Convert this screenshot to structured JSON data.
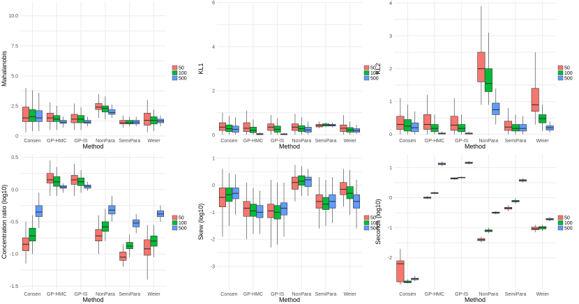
{
  "colors": {
    "n50": "#F8766D",
    "n100": "#00BA38",
    "n500": "#619CFF"
  },
  "chart_data": [
    {
      "type": "boxplot",
      "ylabel": "Mahalanobis",
      "xlabel": "Method",
      "ylim": [
        0,
        11.2
      ],
      "yticks": [
        0,
        2.5,
        5,
        7.5,
        10
      ],
      "yticklabels": [
        "0",
        "2.5",
        "5.0",
        "7.5",
        "10.0"
      ],
      "categories": [
        "Consen",
        "GP-HMC",
        "GP-IS",
        "NonPara",
        "SemiPara",
        "Weier"
      ],
      "legend": [
        "50",
        "100",
        "500"
      ],
      "boxes": [
        [
          [
            0.3,
            1.2,
            1.5,
            2.4,
            4.0
          ],
          [
            0.4,
            1.2,
            1.6,
            2.2,
            3.8
          ],
          [
            0.4,
            1.2,
            1.5,
            2.1,
            3.6
          ]
        ],
        [
          [
            0.5,
            1.2,
            1.5,
            1.9,
            2.8
          ],
          [
            0.5,
            1.2,
            1.4,
            1.7,
            2.5
          ],
          [
            0.7,
            1.05,
            1.15,
            1.3,
            1.6
          ]
        ],
        [
          [
            0.5,
            1.1,
            1.4,
            1.8,
            2.7
          ],
          [
            0.5,
            1.1,
            1.4,
            1.7,
            2.4
          ],
          [
            0.8,
            1.05,
            1.15,
            1.3,
            1.6
          ]
        ],
        [
          [
            1.5,
            2.2,
            2.4,
            2.7,
            3.5
          ],
          [
            1.4,
            2.0,
            2.3,
            2.5,
            3.3
          ],
          [
            1.5,
            1.8,
            1.95,
            2.2,
            2.6
          ]
        ],
        [
          [
            0.7,
            1.0,
            1.1,
            1.3,
            1.7
          ],
          [
            0.8,
            1.0,
            1.1,
            1.3,
            1.6
          ],
          [
            0.8,
            1.0,
            1.15,
            1.3,
            1.6
          ]
        ],
        [
          [
            0.3,
            0.9,
            1.3,
            1.9,
            3.0
          ],
          [
            0.4,
            1.0,
            1.3,
            1.6,
            2.2
          ],
          [
            0.8,
            1.1,
            1.25,
            1.4,
            1.7
          ]
        ]
      ]
    },
    {
      "type": "boxplot",
      "ylabel": "KL1",
      "xlabel": "Method",
      "ylim": [
        -0.05,
        6.05
      ],
      "yticks": [
        0,
        2,
        4,
        6
      ],
      "yticklabels": [
        "0",
        "2",
        "4",
        "6"
      ],
      "categories": [
        "Consen",
        "GP-HMC",
        "GP-IS",
        "NonPara",
        "SemiPara",
        "Weier"
      ],
      "legend": [
        "50",
        "100",
        "500"
      ],
      "boxes": [
        [
          [
            0.01,
            0.2,
            0.35,
            0.55,
            1.0
          ],
          [
            0.01,
            0.15,
            0.28,
            0.45,
            0.85
          ],
          [
            0.01,
            0.12,
            0.25,
            0.4,
            0.8
          ]
        ],
        [
          [
            0.01,
            0.15,
            0.3,
            0.55,
            1.1
          ],
          [
            0.01,
            0.1,
            0.2,
            0.35,
            0.7
          ],
          [
            0.0,
            0.01,
            0.03,
            0.06,
            0.12
          ]
        ],
        [
          [
            0.01,
            0.2,
            0.35,
            0.5,
            0.9
          ],
          [
            0.01,
            0.12,
            0.25,
            0.4,
            0.75
          ],
          [
            0.0,
            0.01,
            0.03,
            0.05,
            0.1
          ]
        ],
        [
          [
            0.01,
            0.2,
            0.35,
            0.5,
            0.95
          ],
          [
            0.01,
            0.15,
            0.28,
            0.42,
            0.8
          ],
          [
            0.01,
            0.12,
            0.22,
            0.35,
            0.6
          ]
        ],
        [
          [
            0.3,
            0.36,
            0.42,
            0.48,
            0.6
          ],
          [
            0.35,
            0.4,
            0.45,
            0.5,
            0.56
          ],
          [
            0.34,
            0.4,
            0.44,
            0.48,
            0.55
          ]
        ],
        [
          [
            0.01,
            0.15,
            0.3,
            0.45,
            0.9
          ],
          [
            0.01,
            0.12,
            0.22,
            0.33,
            0.6
          ],
          [
            0.05,
            0.12,
            0.2,
            0.28,
            0.45
          ]
        ]
      ]
    },
    {
      "type": "boxplot",
      "ylabel": "KL2",
      "xlabel": "Method",
      "ylim": [
        -0.05,
        4.05
      ],
      "yticks": [
        0,
        1,
        2,
        3,
        4
      ],
      "yticklabels": [
        "0",
        "1",
        "2",
        "3",
        "4"
      ],
      "categories": [
        "Consen",
        "GP-HMC",
        "GP-IS",
        "NonPara",
        "SemiPara",
        "Weier"
      ],
      "legend": [
        "50",
        "100",
        "500"
      ],
      "boxes": [
        [
          [
            0.0,
            0.15,
            0.3,
            0.55,
            1.1
          ],
          [
            0.0,
            0.1,
            0.25,
            0.45,
            0.9
          ],
          [
            0.0,
            0.08,
            0.2,
            0.35,
            0.7
          ]
        ],
        [
          [
            0.0,
            0.15,
            0.3,
            0.6,
            1.2
          ],
          [
            0.0,
            0.08,
            0.18,
            0.3,
            0.6
          ],
          [
            0.0,
            0.01,
            0.02,
            0.04,
            0.08
          ]
        ],
        [
          [
            0.0,
            0.12,
            0.28,
            0.55,
            1.1
          ],
          [
            0.0,
            0.08,
            0.18,
            0.3,
            0.6
          ],
          [
            0.0,
            0.01,
            0.02,
            0.04,
            0.08
          ]
        ],
        [
          [
            0.9,
            1.6,
            2.0,
            2.5,
            3.9
          ],
          [
            0.9,
            1.3,
            1.55,
            2.0,
            3.1
          ],
          [
            0.3,
            0.6,
            0.75,
            0.95,
            1.4
          ]
        ],
        [
          [
            0.0,
            0.12,
            0.22,
            0.4,
            0.8
          ],
          [
            0.0,
            0.1,
            0.18,
            0.3,
            0.6
          ],
          [
            0.0,
            0.1,
            0.18,
            0.3,
            0.55
          ]
        ],
        [
          [
            0.3,
            0.7,
            0.9,
            1.4,
            2.5
          ],
          [
            0.1,
            0.35,
            0.48,
            0.6,
            0.9
          ],
          [
            0.05,
            0.13,
            0.2,
            0.26,
            0.4
          ]
        ]
      ]
    },
    {
      "type": "boxplot",
      "ylabel": "Concentration ratio (log10)",
      "xlabel": "Method",
      "ylim": [
        -1.55,
        0.55
      ],
      "yticks": [
        -1.5,
        -1.0,
        -0.5,
        0.0,
        0.5
      ],
      "yticklabels": [
        "-1.5",
        "-1.0",
        "-0.5",
        "0.0",
        "0.5"
      ],
      "categories": [
        "Consen",
        "GP-HMC",
        "GP-IS",
        "NonPara",
        "SemiPara",
        "Weier"
      ],
      "legend": [
        "50",
        "100",
        "500"
      ],
      "boxes": [
        [
          [
            -1.15,
            -0.95,
            -0.85,
            -0.75,
            -0.5
          ],
          [
            -1.0,
            -0.8,
            -0.72,
            -0.6,
            -0.4
          ],
          [
            -0.6,
            -0.42,
            -0.35,
            -0.25,
            -0.05
          ]
        ],
        [
          [
            -0.1,
            0.1,
            0.15,
            0.25,
            0.45
          ],
          [
            -0.1,
            0.05,
            0.12,
            0.2,
            0.35
          ],
          [
            -0.05,
            0.02,
            0.04,
            0.06,
            0.1
          ]
        ],
        [
          [
            -0.1,
            0.08,
            0.15,
            0.22,
            0.4
          ],
          [
            -0.05,
            0.06,
            0.12,
            0.18,
            0.3
          ],
          [
            -0.02,
            0.02,
            0.05,
            0.07,
            0.12
          ]
        ],
        [
          [
            -1.0,
            -0.8,
            -0.72,
            -0.62,
            -0.4
          ],
          [
            -0.8,
            -0.65,
            -0.58,
            -0.5,
            -0.3
          ],
          [
            -0.5,
            -0.38,
            -0.32,
            -0.25,
            -0.1
          ]
        ],
        [
          [
            -1.2,
            -1.1,
            -1.05,
            -0.97,
            -0.85
          ],
          [
            -1.05,
            -0.92,
            -0.88,
            -0.82,
            -0.7
          ],
          [
            -0.68,
            -0.58,
            -0.52,
            -0.47,
            -0.38
          ]
        ],
        [
          [
            -1.4,
            -1.02,
            -0.92,
            -0.78,
            -0.55
          ],
          [
            -1.05,
            -0.88,
            -0.8,
            -0.72,
            -0.55
          ],
          [
            -0.5,
            -0.42,
            -0.38,
            -0.33,
            -0.25
          ]
        ]
      ]
    },
    {
      "type": "boxplot",
      "ylabel": "Skew (log10)",
      "xlabel": "Method",
      "ylim": [
        -3.85,
        1.15
      ],
      "yticks": [
        -3,
        -2,
        -1,
        0,
        1
      ],
      "yticklabels": [
        "-3",
        "-2",
        "-1",
        "0",
        "1"
      ],
      "categories": [
        "Consen",
        "GP-HMC",
        "GP-IS",
        "NonPara",
        "SemiPara",
        "Weier"
      ],
      "legend": [
        "50",
        "100",
        "500"
      ],
      "boxes": [
        [
          [
            -1.9,
            -0.8,
            -0.45,
            -0.1,
            0.6
          ],
          [
            -1.5,
            -0.6,
            -0.35,
            -0.1,
            0.45
          ],
          [
            -1.1,
            -0.5,
            -0.3,
            -0.1,
            0.4
          ]
        ],
        [
          [
            -2.0,
            -1.15,
            -0.85,
            -0.6,
            0.1
          ],
          [
            -1.8,
            -1.15,
            -0.95,
            -0.7,
            -0.1
          ],
          [
            -1.8,
            -1.2,
            -1.0,
            -0.75,
            -0.2
          ]
        ],
        [
          [
            -2.3,
            -1.2,
            -0.95,
            -0.7,
            0.2
          ],
          [
            -2.2,
            -1.25,
            -1.0,
            -0.75,
            0.1
          ],
          [
            -1.9,
            -1.1,
            -0.85,
            -0.65,
            0.1
          ]
        ],
        [
          [
            -0.6,
            -0.15,
            0.1,
            0.3,
            0.75
          ],
          [
            -0.4,
            0.0,
            0.15,
            0.35,
            0.7
          ],
          [
            -0.4,
            -0.05,
            0.2,
            0.3,
            0.6
          ]
        ],
        [
          [
            -1.6,
            -0.85,
            -0.6,
            -0.35,
            0.3
          ],
          [
            -1.5,
            -0.9,
            -0.7,
            -0.45,
            0.2
          ],
          [
            -1.4,
            -0.85,
            -0.6,
            -0.35,
            0.3
          ]
        ],
        [
          [
            -0.8,
            -0.35,
            -0.15,
            0.1,
            0.6
          ],
          [
            -1.1,
            -0.5,
            -0.3,
            -0.05,
            0.55
          ],
          [
            -1.6,
            -0.85,
            -0.6,
            -0.35,
            0.2
          ]
        ]
      ]
    },
    {
      "type": "boxplot",
      "ylabel": "Seconds (log10)",
      "xlabel": "Method",
      "ylim": [
        -3.05,
        1.45
      ],
      "yticks": [
        -2,
        -1,
        0,
        1
      ],
      "yticklabels": [
        "-2",
        "-1",
        "0",
        "1"
      ],
      "categories": [
        "Consen",
        "GP-HMC",
        "GP-IS",
        "NonPara",
        "SemiPara",
        "Weier"
      ],
      "legend": [
        "50",
        "100",
        "500"
      ],
      "boxes": [
        [
          [
            -2.9,
            -2.8,
            -2.2,
            -2.1,
            -1.7
          ],
          [
            -2.85,
            -2.83,
            -2.8,
            -2.77,
            -2.72
          ],
          [
            -2.78,
            -2.73,
            -2.7,
            -2.68,
            -2.6
          ]
        ],
        [
          [
            -0.04,
            -0.02,
            0.0,
            0.02,
            0.05
          ],
          [
            0.12,
            0.14,
            0.15,
            0.17,
            0.2
          ],
          [
            1.05,
            1.1,
            1.12,
            1.15,
            1.2
          ]
        ],
        [
          [
            0.6,
            0.62,
            0.64,
            0.66,
            0.68
          ],
          [
            0.64,
            0.66,
            0.67,
            0.68,
            0.7
          ],
          [
            1.1,
            1.14,
            1.16,
            1.18,
            1.22
          ]
        ],
        [
          [
            -1.48,
            -1.43,
            -1.4,
            -1.36,
            -1.3
          ],
          [
            -1.18,
            -1.13,
            -1.1,
            -1.07,
            -1.0
          ],
          [
            -0.55,
            -0.52,
            -0.5,
            -0.48,
            -0.45
          ]
        ],
        [
          [
            -0.45,
            -0.38,
            -0.35,
            -0.32,
            -0.25
          ],
          [
            -0.2,
            -0.14,
            -0.12,
            -0.09,
            -0.02
          ],
          [
            0.5,
            0.55,
            0.57,
            0.6,
            0.65
          ]
        ],
        [
          [
            -1.15,
            -1.07,
            -1.03,
            -0.98,
            -0.9
          ],
          [
            -1.1,
            -1.04,
            -1.0,
            -0.96,
            -0.9
          ],
          [
            -0.78,
            -0.74,
            -0.72,
            -0.69,
            -0.64
          ]
        ]
      ]
    }
  ]
}
